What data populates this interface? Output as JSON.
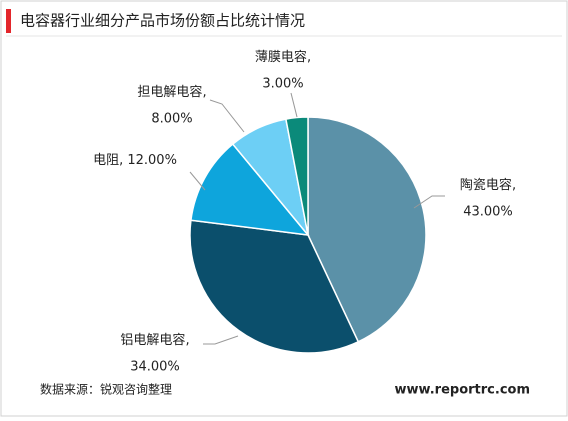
{
  "chart_data": {
    "type": "pie",
    "title": "电容器行业细分产品市场份额占比统计情况",
    "categories": [
      "陶瓷电容",
      "铝电解电容",
      "电阻",
      "担电解电容",
      "薄膜电容"
    ],
    "values": [
      43,
      34,
      12,
      8,
      3
    ],
    "value_labels": [
      "43.00%",
      "34.00%",
      "12.00%",
      "8.00%",
      "3.00%"
    ],
    "data_label_separator": ",",
    "colors": [
      "#5b91a8",
      "#0b4f6c",
      "#0ea5dc",
      "#6dcff5",
      "#0b8a7a"
    ],
    "source": "数据来源：锐观咨询整理",
    "watermark": "www.reportrc.com"
  }
}
